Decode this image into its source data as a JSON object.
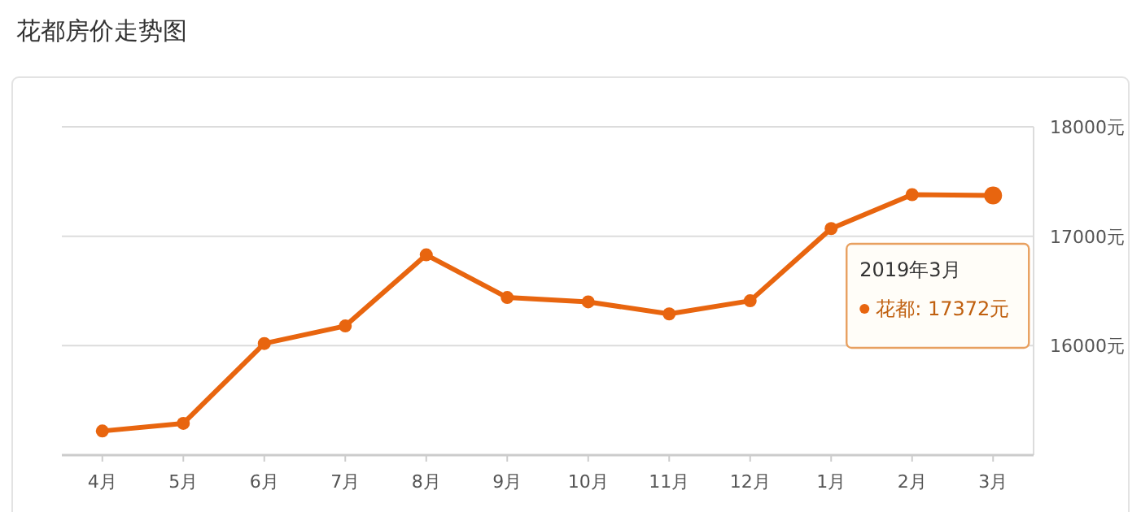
{
  "chart_data": {
    "type": "line",
    "title": "花都房价走势图",
    "categories": [
      "4月",
      "5月",
      "6月",
      "7月",
      "8月",
      "9月",
      "10月",
      "11月",
      "12月",
      "1月",
      "2月",
      "3月"
    ],
    "series": [
      {
        "color": "#e8650f",
        "values": [
          15220,
          15290,
          16020,
          16180,
          16830,
          16440,
          16400,
          16290,
          16410,
          17070,
          17380,
          17372
        ]
      }
    ],
    "ylim": [
      15000,
      18000
    ],
    "yticks": [
      {
        "value": 16000,
        "label": "16000元"
      },
      {
        "value": 17000,
        "label": "17000元"
      },
      {
        "value": 18000,
        "label": "18000元"
      }
    ],
    "grid": "y",
    "marker": "circle",
    "line_style": "solid",
    "annotations": [
      "2019年3月",
      "花都:  17372元"
    ]
  }
}
